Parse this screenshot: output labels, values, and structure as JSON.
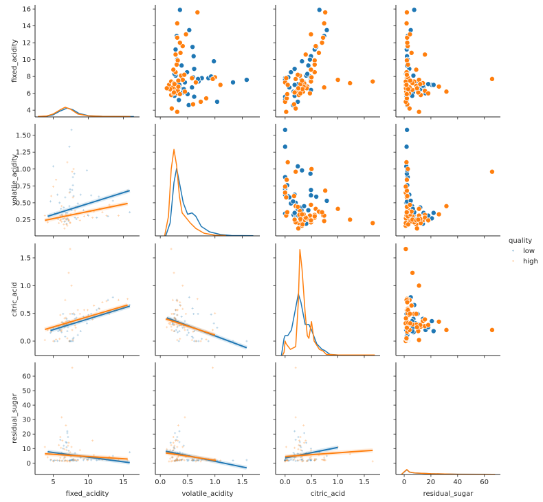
{
  "chart_data": {
    "type": "pairplot",
    "variables": [
      "fixed_acidity",
      "volatile_acidity",
      "citric_acid",
      "residual_sugar"
    ],
    "hue": "quality",
    "legend": {
      "title": "quality",
      "placement": "right",
      "entries": [
        {
          "name": "low",
          "color": "#1f77b4"
        },
        {
          "name": "high",
          "color": "#ff7f0e"
        }
      ]
    },
    "upper": "scatter",
    "lower": "regression scatter",
    "diag": "kde",
    "grid": false,
    "axes": {
      "fixed_acidity": {
        "lim_as_x": [
          2.4,
          17.3
        ],
        "lim_as_y": [
          3.2,
          16.5
        ],
        "xticks": [
          5,
          10,
          15
        ],
        "xtick_labels": [
          "5",
          "10",
          "15"
        ],
        "yticks": [
          4,
          6,
          8,
          10,
          12,
          14,
          16
        ],
        "ytick_labels": [
          "4",
          "6",
          "8",
          "10",
          "12",
          "14",
          "16"
        ]
      },
      "volatile_acidity": {
        "lim_as_x": [
          -0.09,
          1.82
        ],
        "lim_as_y": [
          0.01,
          1.67
        ],
        "xticks": [
          0,
          0.5,
          1.0,
          1.5
        ],
        "xtick_labels": [
          "0.0",
          "0.5",
          "1.0",
          "1.5"
        ],
        "yticks": [
          0.25,
          0.5,
          0.75,
          1.0,
          1.25,
          1.5
        ],
        "ytick_labels": [
          "0.25",
          "0.50",
          "0.75",
          "1.00",
          "1.25",
          "1.50"
        ]
      },
      "citric_acid": {
        "lim_as_x": [
          -0.18,
          1.8
        ],
        "lim_as_y": [
          -0.26,
          1.76
        ],
        "xticks": [
          0,
          0.5,
          1.0,
          1.5
        ],
        "xtick_labels": [
          "0.0",
          "0.5",
          "1.0",
          "1.5"
        ],
        "yticks": [
          0,
          0.5,
          1.0,
          1.5
        ],
        "ytick_labels": [
          "0.0",
          "0.5",
          "1.0",
          "1.5"
        ]
      },
      "residual_sugar": {
        "lim_as_x": [
          -6.2,
          72
        ],
        "lim_as_y": [
          -7.9,
          69.5
        ],
        "xticks": [
          0,
          20,
          40,
          60
        ],
        "xtick_labels": [
          "0",
          "20",
          "40",
          "60"
        ],
        "yticks": [
          0,
          10,
          20,
          30,
          40,
          50,
          60
        ],
        "ytick_labels": [
          "0",
          "10",
          "20",
          "30",
          "40",
          "50",
          "60"
        ]
      }
    },
    "points": {
      "low": [
        [
          7.4,
          0.7,
          0.0,
          1.9
        ],
        [
          7.8,
          0.88,
          0.0,
          2.6
        ],
        [
          7.8,
          0.76,
          0.04,
          2.3
        ],
        [
          11.2,
          0.28,
          0.56,
          1.9
        ],
        [
          7.4,
          0.66,
          0.0,
          1.8
        ],
        [
          7.9,
          0.6,
          0.06,
          1.6
        ],
        [
          6.7,
          0.58,
          0.08,
          1.8
        ],
        [
          8.9,
          0.62,
          0.18,
          3.8
        ],
        [
          7.6,
          0.39,
          0.31,
          2.3
        ],
        [
          6.3,
          0.3,
          0.34,
          1.6
        ],
        [
          7.0,
          0.27,
          0.36,
          20.7
        ],
        [
          6.2,
          0.32,
          0.16,
          7.0
        ],
        [
          8.1,
          0.28,
          0.4,
          6.9
        ],
        [
          7.2,
          0.23,
          0.32,
          8.5
        ],
        [
          6.5,
          0.43,
          0.28,
          12.0
        ],
        [
          6.8,
          0.35,
          0.28,
          14.5
        ],
        [
          7.3,
          0.45,
          0.36,
          5.9
        ],
        [
          5.9,
          0.5,
          0.2,
          1.5
        ],
        [
          9.3,
          0.39,
          0.44,
          2.1
        ],
        [
          10.4,
          0.61,
          0.49,
          2.1
        ],
        [
          5.6,
          0.62,
          0.0,
          1.8
        ],
        [
          6.0,
          0.29,
          0.2,
          16.0
        ],
        [
          6.9,
          0.25,
          0.3,
          11.0
        ],
        [
          8.5,
          0.49,
          0.11,
          2.3
        ],
        [
          12.8,
          0.3,
          0.74,
          2.6
        ],
        [
          15.9,
          0.36,
          0.65,
          7.5
        ],
        [
          7.6,
          1.58,
          0.0,
          2.1
        ],
        [
          5.0,
          1.04,
          0.24,
          1.6
        ],
        [
          7.3,
          1.33,
          0.0,
          1.8
        ],
        [
          8.0,
          0.93,
          0.48,
          2.0
        ],
        [
          6.4,
          0.26,
          0.49,
          10.0
        ],
        [
          9.8,
          0.98,
          0.32,
          2.3
        ],
        [
          4.6,
          0.52,
          0.15,
          2.1
        ],
        [
          7.1,
          0.31,
          0.25,
          18.0
        ],
        [
          6.6,
          0.22,
          0.3,
          4.0
        ],
        [
          11.5,
          0.59,
          0.59,
          2.6
        ],
        [
          8.3,
          0.26,
          0.42,
          1.4
        ],
        [
          6.1,
          0.41,
          0.24,
          6.5
        ],
        [
          5.2,
          0.34,
          0.0,
          1.8
        ],
        [
          10.0,
          0.31,
          0.47,
          2.6
        ],
        [
          7.7,
          0.69,
          0.49,
          1.8
        ],
        [
          6.9,
          0.19,
          0.4,
          14.0
        ],
        [
          13.5,
          0.53,
          0.79,
          4.9
        ],
        [
          7.0,
          0.35,
          0.18,
          22.0
        ],
        [
          5.7,
          0.26,
          0.18,
          6.0
        ]
      ],
      "high": [
        [
          6.8,
          0.26,
          0.42,
          1.7
        ],
        [
          7.3,
          0.65,
          0.0,
          1.2
        ],
        [
          7.8,
          0.58,
          0.02,
          2.0
        ],
        [
          8.5,
          0.28,
          0.56,
          1.8
        ],
        [
          8.1,
          0.38,
          0.28,
          2.1
        ],
        [
          6.0,
          0.31,
          0.47,
          3.6
        ],
        [
          6.9,
          0.18,
          0.3,
          9.0
        ],
        [
          6.2,
          0.22,
          0.34,
          1.5
        ],
        [
          7.2,
          0.24,
          0.36,
          14.0
        ],
        [
          6.4,
          0.3,
          0.3,
          6.1
        ],
        [
          6.6,
          0.27,
          0.41,
          1.3
        ],
        [
          5.8,
          0.2,
          0.26,
          12.4
        ],
        [
          7.0,
          0.16,
          0.32,
          1.1
        ],
        [
          6.7,
          0.23,
          0.74,
          4.0
        ],
        [
          7.4,
          0.21,
          0.49,
          7.5
        ],
        [
          6.3,
          0.32,
          0.27,
          15.5
        ],
        [
          9.9,
          0.32,
          0.56,
          2.0
        ],
        [
          10.6,
          0.28,
          0.39,
          15.5
        ],
        [
          12.6,
          0.31,
          0.72,
          2.2
        ],
        [
          15.6,
          0.68,
          0.76,
          2.0
        ],
        [
          14.3,
          0.31,
          0.74,
          1.8
        ],
        [
          11.6,
          0.41,
          0.58,
          2.6
        ],
        [
          4.7,
          0.6,
          0.17,
          2.3
        ],
        [
          3.8,
          0.31,
          0.02,
          11.1
        ],
        [
          5.0,
          0.74,
          0.0,
          1.2
        ],
        [
          4.2,
          0.21,
          0.2,
          4.0
        ],
        [
          7.6,
          0.41,
          1.0,
          11.1
        ],
        [
          7.4,
          0.2,
          1.66,
          1.2
        ],
        [
          7.2,
          0.25,
          1.23,
          6.2
        ],
        [
          7.9,
          1.0,
          0.5,
          2.7
        ],
        [
          7.7,
          0.96,
          0.2,
          65.8
        ],
        [
          6.2,
          0.45,
          0.2,
          31.6
        ],
        [
          6.8,
          0.33,
          0.35,
          26.0
        ],
        [
          6.0,
          0.24,
          0.29,
          18.0
        ],
        [
          8.8,
          0.24,
          0.49,
          9.0
        ],
        [
          7.1,
          0.26,
          0.29,
          12.0
        ],
        [
          6.5,
          0.18,
          0.33,
          3.0
        ],
        [
          5.4,
          0.84,
          0.03,
          2.0
        ],
        [
          9.4,
          0.3,
          0.56,
          2.8
        ],
        [
          8.2,
          0.44,
          0.24,
          2.0
        ],
        [
          6.1,
          0.25,
          0.18,
          10.5
        ],
        [
          7.5,
          0.33,
          0.32,
          4.5
        ],
        [
          10.8,
          0.37,
          0.64,
          5.5
        ],
        [
          12.0,
          0.36,
          0.7,
          2.3
        ],
        [
          5.9,
          0.36,
          0.04,
          1.9
        ],
        [
          13.0,
          0.47,
          0.49,
          4.3
        ],
        [
          6.6,
          0.12,
          0.25,
          9.6
        ],
        [
          7.0,
          1.1,
          0.05,
          1.7
        ]
      ]
    },
    "regressions": [
      {
        "x": "fixed_acidity",
        "y": "volatile_acidity",
        "low": [
          [
            4.2,
            0.3
          ],
          [
            15.9,
            0.68
          ]
        ],
        "high": [
          [
            3.8,
            0.24
          ],
          [
            15.6,
            0.49
          ]
        ]
      },
      {
        "x": "fixed_acidity",
        "y": "citric_acid",
        "low": [
          [
            4.6,
            0.19
          ],
          [
            15.9,
            0.63
          ]
        ],
        "high": [
          [
            3.8,
            0.21
          ],
          [
            15.6,
            0.65
          ]
        ]
      },
      {
        "x": "volatile_acidity",
        "y": "citric_acid",
        "low": [
          [
            0.12,
            0.42
          ],
          [
            1.58,
            -0.12
          ]
        ],
        "high": [
          [
            0.1,
            0.4
          ],
          [
            1.0,
            0.11
          ]
        ]
      },
      {
        "x": "fixed_acidity",
        "y": "residual_sugar",
        "low": [
          [
            4.2,
            7.8
          ],
          [
            15.9,
            0.3
          ]
        ],
        "high": [
          [
            3.8,
            6.4
          ],
          [
            15.6,
            2.8
          ]
        ]
      },
      {
        "x": "volatile_acidity",
        "y": "residual_sugar",
        "low": [
          [
            0.1,
            8.2
          ],
          [
            1.58,
            -3.3
          ]
        ],
        "high": [
          [
            0.1,
            7.0
          ],
          [
            1.02,
            1.8
          ]
        ]
      },
      {
        "x": "citric_acid",
        "y": "residual_sugar",
        "low": [
          [
            0.0,
            3.5
          ],
          [
            1.0,
            10.8
          ]
        ],
        "high": [
          [
            0.0,
            4.5
          ],
          [
            1.66,
            8.8
          ]
        ]
      }
    ],
    "kde": {
      "fixed_acidity": {
        "low": [
          [
            3.0,
            3.25
          ],
          [
            4.0,
            3.28
          ],
          [
            5.0,
            3.45
          ],
          [
            6.0,
            3.9
          ],
          [
            7.0,
            4.25
          ],
          [
            7.8,
            4.05
          ],
          [
            8.7,
            3.6
          ],
          [
            10,
            3.35
          ],
          [
            12,
            3.27
          ],
          [
            16.5,
            3.24
          ]
        ],
        "high": [
          [
            2.8,
            3.25
          ],
          [
            4.0,
            3.3
          ],
          [
            5.0,
            3.55
          ],
          [
            6.0,
            4.05
          ],
          [
            6.7,
            4.35
          ],
          [
            7.5,
            4.1
          ],
          [
            8.5,
            3.55
          ],
          [
            10,
            3.32
          ],
          [
            12,
            3.26
          ],
          [
            16,
            3.24
          ]
        ]
      },
      "volatile_acidity": {
        "low": [
          [
            0.1,
            0.01
          ],
          [
            0.18,
            0.2
          ],
          [
            0.25,
            0.8
          ],
          [
            0.3,
            1.01
          ],
          [
            0.35,
            0.8
          ],
          [
            0.42,
            0.5
          ],
          [
            0.5,
            0.33
          ],
          [
            0.58,
            0.35
          ],
          [
            0.65,
            0.3
          ],
          [
            0.75,
            0.15
          ],
          [
            0.9,
            0.07
          ],
          [
            1.1,
            0.03
          ],
          [
            1.3,
            0.015
          ],
          [
            1.7,
            0.012
          ]
        ],
        "high": [
          [
            0.08,
            0.01
          ],
          [
            0.15,
            0.3
          ],
          [
            0.2,
            1.0
          ],
          [
            0.25,
            1.29
          ],
          [
            0.3,
            1.05
          ],
          [
            0.35,
            0.6
          ],
          [
            0.4,
            0.35
          ],
          [
            0.45,
            0.3
          ],
          [
            0.55,
            0.2
          ],
          [
            0.65,
            0.12
          ],
          [
            0.8,
            0.05
          ],
          [
            1.0,
            0.02
          ],
          [
            1.2,
            0.015
          ]
        ]
      },
      "citric_acid": {
        "low": [
          [
            -0.07,
            -0.26
          ],
          [
            -0.02,
            0.05
          ],
          [
            0.0,
            0.1
          ],
          [
            0.05,
            0.1
          ],
          [
            0.12,
            0.2
          ],
          [
            0.2,
            0.6
          ],
          [
            0.25,
            0.85
          ],
          [
            0.3,
            0.7
          ],
          [
            0.38,
            0.3
          ],
          [
            0.45,
            0.3
          ],
          [
            0.5,
            0.2
          ],
          [
            0.6,
            -0.05
          ],
          [
            0.7,
            -0.15
          ],
          [
            0.75,
            -0.17
          ],
          [
            0.85,
            -0.24
          ],
          [
            1.0,
            -0.25
          ]
        ],
        "high": [
          [
            -0.05,
            -0.26
          ],
          [
            -0.02,
            -0.2
          ],
          [
            0.0,
            0.0
          ],
          [
            0.02,
            -0.05
          ],
          [
            0.1,
            -0.15
          ],
          [
            0.2,
            -0.1
          ],
          [
            0.25,
            0.7
          ],
          [
            0.28,
            1.65
          ],
          [
            0.32,
            1.3
          ],
          [
            0.38,
            0.5
          ],
          [
            0.42,
            0.1
          ],
          [
            0.45,
            0.05
          ],
          [
            0.5,
            0.35
          ],
          [
            0.55,
            0.0
          ],
          [
            0.65,
            -0.15
          ],
          [
            0.72,
            -0.18
          ],
          [
            0.78,
            -0.24
          ],
          [
            1.0,
            -0.25
          ],
          [
            1.7,
            -0.25
          ]
        ]
      },
      "residual_sugar": {
        "low": [
          [
            -2,
            -7.8
          ],
          [
            0,
            -6.2
          ],
          [
            2,
            -4.6
          ],
          [
            4,
            -6.3
          ],
          [
            8,
            -6.9
          ],
          [
            20,
            -7.4
          ],
          [
            40,
            -7.7
          ],
          [
            68,
            -7.8
          ]
        ],
        "high": [
          [
            -2,
            -7.8
          ],
          [
            0,
            -6
          ],
          [
            2,
            -4.5
          ],
          [
            4,
            -6.2
          ],
          [
            8,
            -6.8
          ],
          [
            20,
            -7.4
          ],
          [
            40,
            -7.7
          ],
          [
            68,
            -7.8
          ]
        ]
      }
    }
  }
}
